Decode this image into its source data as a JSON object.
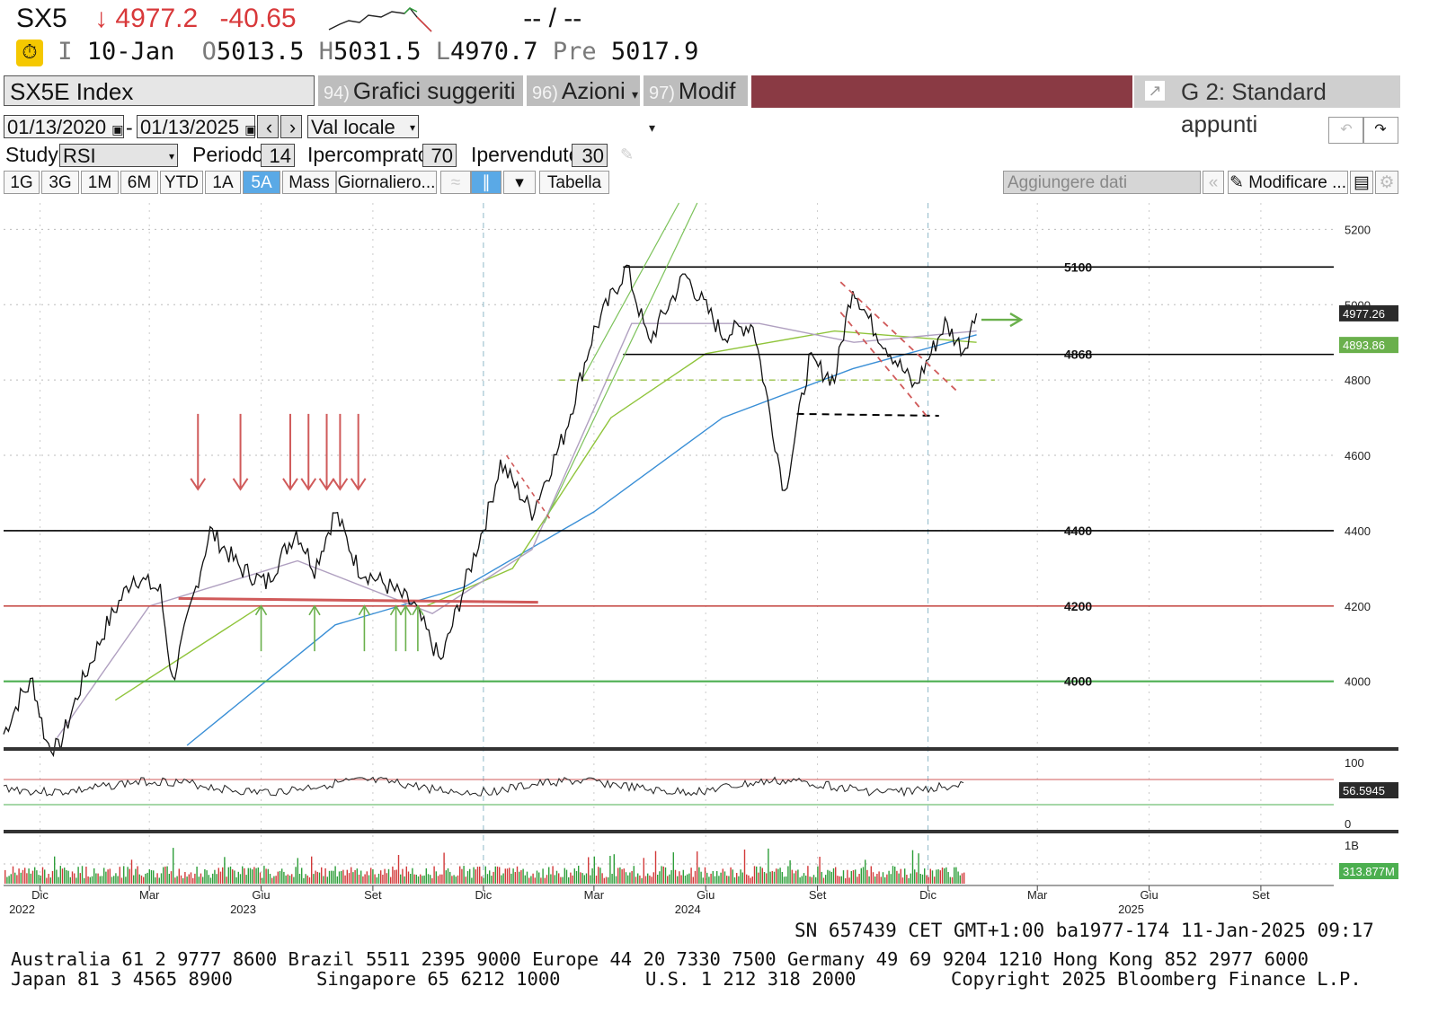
{
  "header": {
    "ticker": "SX5",
    "last": "↓ 4977.2",
    "change": "-40.65",
    "time_placeholder": "-- / --",
    "icon_marker": "I",
    "date": "10-Jan",
    "open_label": "O",
    "open": "5013.5",
    "high_label": "H",
    "high": "5031.5",
    "low_label": "L",
    "low": "4970.7",
    "prev_label": "Pre",
    "prev": "5017.9"
  },
  "toolbar": {
    "security": "SX5E Index",
    "menus": [
      {
        "num": "94)",
        "label": "Grafici suggeriti"
      },
      {
        "num": "96)",
        "label": "Azioni"
      },
      {
        "num": "97)",
        "label": "Modif"
      }
    ],
    "layout_name": "G 2: Standard appunti"
  },
  "controls": {
    "date_from": "01/13/2020",
    "date_to": "01/13/2025",
    "currency": "Val locale",
    "study_label": "Study",
    "study": "RSI",
    "period_label": "Periodo",
    "period": "14",
    "overbought_label": "Ipercomprato",
    "overbought": "70",
    "oversold_label": "Ipervenduto",
    "oversold": "30",
    "ranges": [
      "1G",
      "3G",
      "1M",
      "6M",
      "YTD",
      "1A",
      "5A",
      "Mass"
    ],
    "active_range": "5A",
    "frequency": "Giornaliero...",
    "table_btn": "Tabella",
    "add_data": "Aggiungere dati",
    "modify": "Modificare ..."
  },
  "chart_data": {
    "type": "line",
    "price_axis": {
      "ticks": [
        "5200",
        "5000",
        "4800",
        "4600",
        "4400",
        "4200",
        "4000"
      ],
      "ylim": [
        3830,
        5270
      ]
    },
    "x_axis": {
      "ticks": [
        "Dic",
        "Mar",
        "Giu",
        "Set",
        "Dic",
        "Mar",
        "Giu",
        "Set",
        "Dic",
        "Mar",
        "Giu",
        "Set"
      ],
      "years": [
        "2022",
        "2023",
        "2024",
        "2025"
      ],
      "range": [
        "2022-11-01",
        "2025-10-31"
      ]
    },
    "price_series": {
      "name": "SX5E",
      "points": [
        [
          "2022-11-01",
          3860
        ],
        [
          "2022-11-15",
          3960
        ],
        [
          "2022-11-25",
          4000
        ],
        [
          "2022-12-06",
          3840
        ],
        [
          "2022-12-16",
          3820
        ],
        [
          "2023-01-05",
          4000
        ],
        [
          "2023-01-25",
          4150
        ],
        [
          "2023-02-16",
          4280
        ],
        [
          "2023-03-10",
          4240
        ],
        [
          "2023-03-20",
          4000
        ],
        [
          "2023-04-20",
          4400
        ],
        [
          "2023-05-15",
          4300
        ],
        [
          "2023-06-05",
          4260
        ],
        [
          "2023-06-30",
          4400
        ],
        [
          "2023-07-15",
          4300
        ],
        [
          "2023-08-01",
          4450
        ],
        [
          "2023-08-20",
          4300
        ],
        [
          "2023-09-15",
          4250
        ],
        [
          "2023-10-05",
          4200
        ],
        [
          "2023-10-27",
          4050
        ],
        [
          "2023-11-15",
          4250
        ],
        [
          "2023-12-05",
          4450
        ],
        [
          "2023-12-15",
          4580
        ],
        [
          "2024-01-10",
          4450
        ],
        [
          "2024-02-05",
          4650
        ],
        [
          "2024-03-01",
          4930
        ],
        [
          "2024-03-28",
          5100
        ],
        [
          "2024-04-15",
          4900
        ],
        [
          "2024-05-15",
          5080
        ],
        [
          "2024-06-15",
          4920
        ],
        [
          "2024-07-10",
          4950
        ],
        [
          "2024-08-05",
          4500
        ],
        [
          "2024-08-25",
          4850
        ],
        [
          "2024-09-15",
          4800
        ],
        [
          "2024-09-30",
          5050
        ],
        [
          "2024-10-15",
          4950
        ],
        [
          "2024-11-20",
          4780
        ],
        [
          "2024-12-15",
          4950
        ],
        [
          "2024-12-30",
          4880
        ],
        [
          "2025-01-10",
          4977
        ]
      ]
    },
    "moving_averages": [
      {
        "color": "#3a8fd6",
        "points": [
          [
            "2023-04-01",
            3830
          ],
          [
            "2023-08-01",
            4150
          ],
          [
            "2023-11-15",
            4250
          ],
          [
            "2024-03-01",
            4450
          ],
          [
            "2024-06-15",
            4700
          ],
          [
            "2024-09-30",
            4830
          ],
          [
            "2025-01-10",
            4920
          ]
        ]
      },
      {
        "color": "#8fc43a",
        "points": [
          [
            "2023-02-01",
            3950
          ],
          [
            "2023-06-01",
            4200
          ],
          [
            "2023-10-15",
            4200
          ],
          [
            "2023-12-25",
            4300
          ],
          [
            "2024-03-15",
            4700
          ],
          [
            "2024-06-01",
            4870
          ],
          [
            "2024-09-15",
            4930
          ],
          [
            "2025-01-10",
            4900
          ]
        ]
      },
      {
        "color": "#b0a0c0",
        "points": [
          [
            "2022-12-15",
            3850
          ],
          [
            "2023-03-01",
            4200
          ],
          [
            "2023-07-01",
            4320
          ],
          [
            "2023-10-20",
            4180
          ],
          [
            "2024-01-10",
            4350
          ],
          [
            "2024-04-01",
            4950
          ],
          [
            "2024-07-15",
            4950
          ],
          [
            "2024-10-01",
            4900
          ],
          [
            "2025-01-10",
            4930
          ]
        ]
      }
    ],
    "levels": [
      {
        "value": 5100,
        "label": "5100",
        "color": "#000000"
      },
      {
        "value": 4868,
        "label": "4868",
        "color": "#000000"
      },
      {
        "value": 4400,
        "label": "4400",
        "color": "#000000"
      },
      {
        "value": 4200,
        "label": "4200",
        "color": "#c8504c"
      },
      {
        "value": 4000,
        "label": "4000",
        "color": "#4caf50"
      }
    ],
    "last_labels": [
      {
        "value": "4977.26",
        "y": 4977,
        "color": "#2a2a2a"
      },
      {
        "value": "4893.86",
        "y": 4893,
        "color": "#6ab04c"
      }
    ],
    "rsi": {
      "ticks": [
        "100",
        "0"
      ],
      "last": "56.5945"
    },
    "volume": {
      "ticks": [
        "1B"
      ],
      "last": "313.877M"
    }
  },
  "footer": {
    "session": "SN 657439 CET   GMT+1:00 ba1977-174 11-Jan-2025 09:17",
    "line1": "Australia 61 2 9777 8600 Brazil 5511 2395 9000 Europe 44 20 7330 7500 Germany 49 69 9204 1210 Hong Kong 852 2977 6000",
    "line2_left": "Japan 81 3 4565 8900",
    "line2_mid": "Singapore 65 6212 1000",
    "line2_us": "U.S. 1 212 318 2000",
    "copyright": "Copyright 2025 Bloomberg Finance L.P."
  },
  "colors": {
    "down": "#d8383a",
    "rsi_line": "#222222",
    "vol_up": "#2e9e3a",
    "vol_down": "#d23a3a"
  }
}
